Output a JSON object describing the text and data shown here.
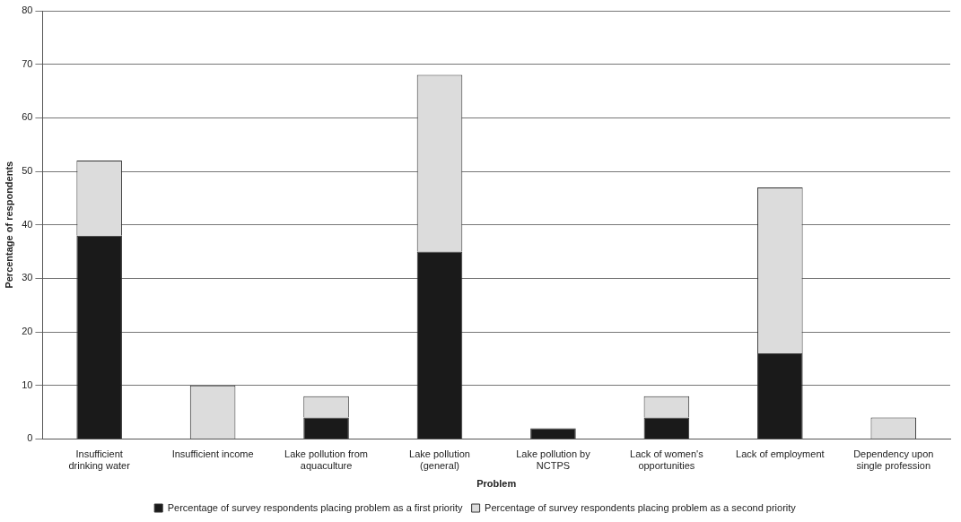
{
  "chart_data": {
    "type": "bar",
    "stacked": true,
    "xlabel": "Problem",
    "ylabel": "Percentage of respondents",
    "categories": [
      "Insufficient drinking water",
      "Insufficient income",
      "Lake pollution from aquaculture",
      "Lake pollution (general)",
      "Lake pollution by NCTPS",
      "Lack of women's opportunities",
      "Lack of employment",
      "Dependency upon single profession"
    ],
    "series": [
      {
        "name": "Percentage of survey respondents placing problem as a first priority",
        "color": "#1a1a1a",
        "values": [
          38,
          0,
          4,
          35,
          2,
          4,
          16,
          0
        ]
      },
      {
        "name": "Percentage of survey respondents placing problem as a second priority",
        "color": "#dcdcdc",
        "values": [
          14,
          10,
          4,
          33,
          0,
          4,
          31,
          4
        ]
      }
    ],
    "ylim": [
      0,
      80
    ],
    "yticks": [
      0,
      10,
      20,
      30,
      40,
      50,
      60,
      70,
      80
    ],
    "grid": "y",
    "legend": "bottom"
  }
}
